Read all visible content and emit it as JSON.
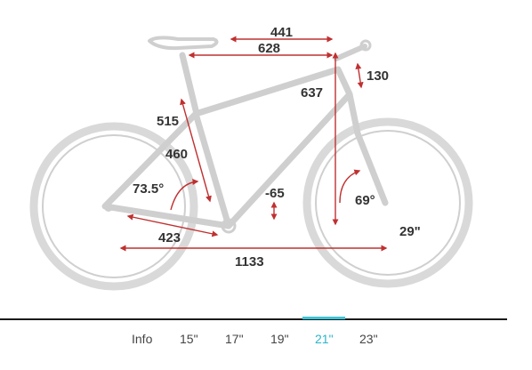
{
  "dimensions": {
    "top_tube_length": "441",
    "effective_top_tube": "628",
    "head_tube_length": "130",
    "stack": "637",
    "seat_tube_length": "515",
    "seat_tube_ctc": "460",
    "seat_angle": "73.5°",
    "bb_drop": "-65",
    "head_angle": "69°",
    "chainstay": "423",
    "wheelbase": "1133",
    "wheel_size": "29\""
  },
  "tabs": [
    {
      "label": "Info",
      "active": false
    },
    {
      "label": "15\"",
      "active": false
    },
    {
      "label": "17\"",
      "active": false
    },
    {
      "label": "19\"",
      "active": false
    },
    {
      "label": "21\"",
      "active": true
    },
    {
      "label": "23\"",
      "active": false
    }
  ],
  "colors": {
    "frame": "#c8c8c8",
    "dimension_arrow": "#c03030",
    "active_tab": "#2bb5c9"
  }
}
